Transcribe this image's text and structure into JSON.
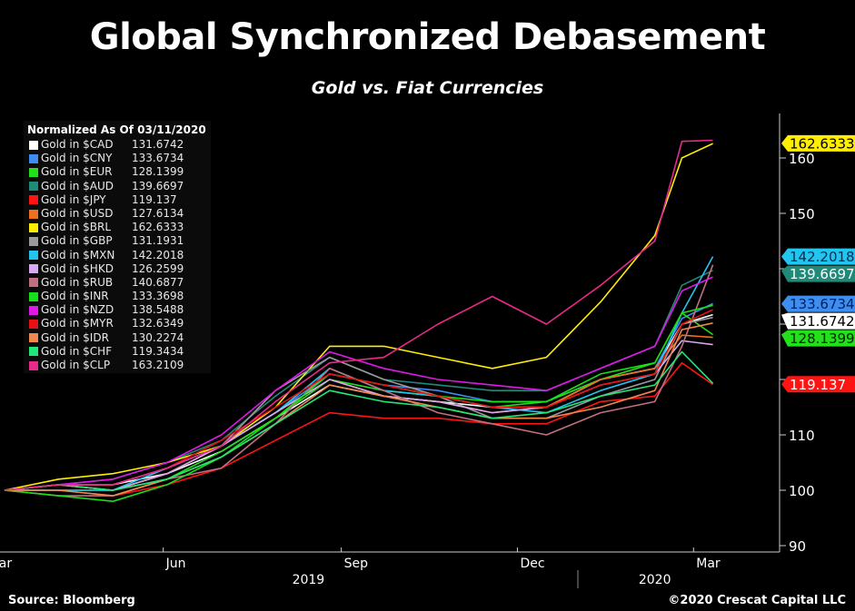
{
  "chart_data": {
    "type": "line",
    "title": "Global Synchronized Debasement",
    "subtitle": "Gold vs. Fiat Currencies",
    "legend_title": "Normalized As Of 03/11/2020",
    "legend_placement": "top-left",
    "ylim": [
      90,
      168
    ],
    "yticks": [
      90,
      100,
      110,
      120,
      130,
      140,
      150,
      160
    ],
    "ytick_labels": [
      "90",
      "100",
      "110",
      "",
      "",
      "",
      "150",
      "160"
    ],
    "x_month_labels": [
      {
        "label": "Mar",
        "date": "2019-03-01"
      },
      {
        "label": "Jun",
        "date": "2019-06-01"
      },
      {
        "label": "Sep",
        "date": "2019-09-01"
      },
      {
        "label": "Dec",
        "date": "2019-12-01"
      },
      {
        "label": "Mar",
        "date": "2020-03-01"
      }
    ],
    "x_year_labels": [
      {
        "label": "2019",
        "date": "2019-08-15"
      },
      {
        "label": "2020",
        "date": "2020-02-10"
      }
    ],
    "grid": false,
    "x": [
      "2019-03-11",
      "2019-04-08",
      "2019-05-06",
      "2019-06-03",
      "2019-07-01",
      "2019-07-29",
      "2019-08-26",
      "2019-09-23",
      "2019-10-21",
      "2019-11-18",
      "2019-12-16",
      "2020-01-13",
      "2020-02-10",
      "2020-02-24",
      "2020-03-11"
    ],
    "series": [
      {
        "name": "Gold in $CAD",
        "last": "131.6742",
        "color": "#ffffff",
        "values": [
          100,
          101,
          101,
          103,
          107,
          113,
          119,
          117,
          116,
          115,
          115,
          120,
          122,
          130,
          131.7
        ]
      },
      {
        "name": "Gold in $CNY",
        "last": "133.6734",
        "color": "#3d8ef0",
        "values": [
          100,
          101,
          101,
          104,
          108,
          114,
          121,
          119,
          118,
          116,
          116,
          120,
          122,
          131,
          133.7
        ]
      },
      {
        "name": "Gold in $EUR",
        "last": "128.1399",
        "color": "#22e01a",
        "values": [
          100,
          100,
          100,
          102,
          107,
          113,
          120,
          118,
          117,
          115,
          116,
          120,
          123,
          132,
          128.1
        ]
      },
      {
        "name": "Gold in $AUD",
        "last": "139.6697",
        "color": "#1f8a78",
        "values": [
          100,
          101,
          102,
          105,
          109,
          117,
          124,
          120,
          119,
          118,
          118,
          122,
          126,
          137,
          139.7
        ]
      },
      {
        "name": "Gold in $JPY",
        "last": "119.137",
        "color": "#ff1414",
        "values": [
          100,
          100,
          99,
          101,
          104,
          109,
          114,
          113,
          113,
          112,
          112,
          116,
          117,
          123,
          119.1
        ]
      },
      {
        "name": "Gold in $USD",
        "last": "127.6134",
        "color": "#f07020",
        "values": [
          100,
          101,
          100,
          103,
          108,
          114,
          120,
          117,
          116,
          114,
          115,
          120,
          122,
          128,
          127.6
        ]
      },
      {
        "name": "Gold in $BRL",
        "last": "162.6333",
        "color": "#ffee00",
        "values": [
          100,
          102,
          103,
          105,
          108,
          115,
          126,
          126,
          124,
          122,
          124,
          134,
          146,
          160,
          162.6
        ]
      },
      {
        "name": "Gold in $GBP",
        "last": "131.1931",
        "color": "#9a9a9a",
        "values": [
          100,
          101,
          101,
          104,
          108,
          118,
          124,
          120,
          117,
          113,
          113,
          117,
          120,
          130,
          131.2
        ]
      },
      {
        "name": "Gold in $MXN",
        "last": "142.2018",
        "color": "#22c4f0",
        "values": [
          100,
          100,
          100,
          104,
          108,
          114,
          122,
          118,
          117,
          115,
          114,
          118,
          121,
          132,
          142.2
        ]
      },
      {
        "name": "Gold in $HKD",
        "last": "126.2599",
        "color": "#d8a8f0",
        "values": [
          100,
          101,
          100,
          103,
          108,
          114,
          120,
          117,
          116,
          114,
          115,
          119,
          121,
          127,
          126.3
        ]
      },
      {
        "name": "Gold in $RUB",
        "last": "140.6877",
        "color": "#c07080",
        "values": [
          100,
          99,
          99,
          102,
          104,
          112,
          122,
          118,
          114,
          112,
          110,
          114,
          116,
          126,
          140.7
        ]
      },
      {
        "name": "Gold in $INR",
        "last": "133.3698",
        "color": "#18e018",
        "values": [
          100,
          99,
          98,
          101,
          106,
          113,
          121,
          119,
          117,
          116,
          116,
          121,
          123,
          132,
          133.4
        ]
      },
      {
        "name": "Gold in $NZD",
        "last": "138.5488",
        "color": "#e018e8",
        "values": [
          100,
          101,
          102,
          105,
          110,
          118,
          125,
          122,
          120,
          119,
          118,
          122,
          126,
          136,
          138.5
        ]
      },
      {
        "name": "Gold in $MYR",
        "last": "132.6349",
        "color": "#e81010",
        "values": [
          100,
          101,
          101,
          104,
          109,
          115,
          121,
          119,
          117,
          115,
          115,
          119,
          121,
          130,
          132.6
        ]
      },
      {
        "name": "Gold in $IDR",
        "last": "130.2274",
        "color": "#f08850",
        "values": [
          100,
          100,
          99,
          102,
          106,
          112,
          119,
          117,
          115,
          113,
          113,
          115,
          118,
          129,
          130.2
        ]
      },
      {
        "name": "Gold in $CHF",
        "last": "119.3434",
        "color": "#20e878",
        "values": [
          100,
          101,
          100,
          102,
          106,
          112,
          118,
          116,
          115,
          113,
          114,
          117,
          119,
          125,
          119.3
        ]
      },
      {
        "name": "Gold in $CLP",
        "last": "163.2109",
        "color": "#e82a88",
        "values": [
          100,
          101,
          101,
          104,
          108,
          116,
          123,
          124,
          130,
          135,
          130,
          137,
          145,
          163,
          163.2
        ]
      }
    ],
    "right_tags": [
      {
        "value": 162.6333,
        "label": "162.6333",
        "bg": "#ffee00",
        "fg": "#000000"
      },
      {
        "value": 142.2018,
        "label": "142.2018",
        "bg": "#22c4f0",
        "fg": "#003050"
      },
      {
        "value": 139.6697,
        "label": "139.6697",
        "bg": "#1f8a78",
        "fg": "#ffffff"
      },
      {
        "value": 133.6734,
        "label": "133.6734",
        "bg": "#3d8ef0",
        "fg": "#002060"
      },
      {
        "value": 131.6742,
        "label": "131.6742",
        "bg": "#ffffff",
        "fg": "#000000"
      },
      {
        "value": 128.1399,
        "label": "128.1399",
        "bg": "#22e01a",
        "fg": "#002000"
      },
      {
        "value": 119.137,
        "label": "119.137",
        "bg": "#ff1414",
        "fg": "#ffffff"
      }
    ]
  },
  "footer": {
    "source": "Source: Bloomberg",
    "copyright": "©2020 Crescat Capital LLC"
  }
}
